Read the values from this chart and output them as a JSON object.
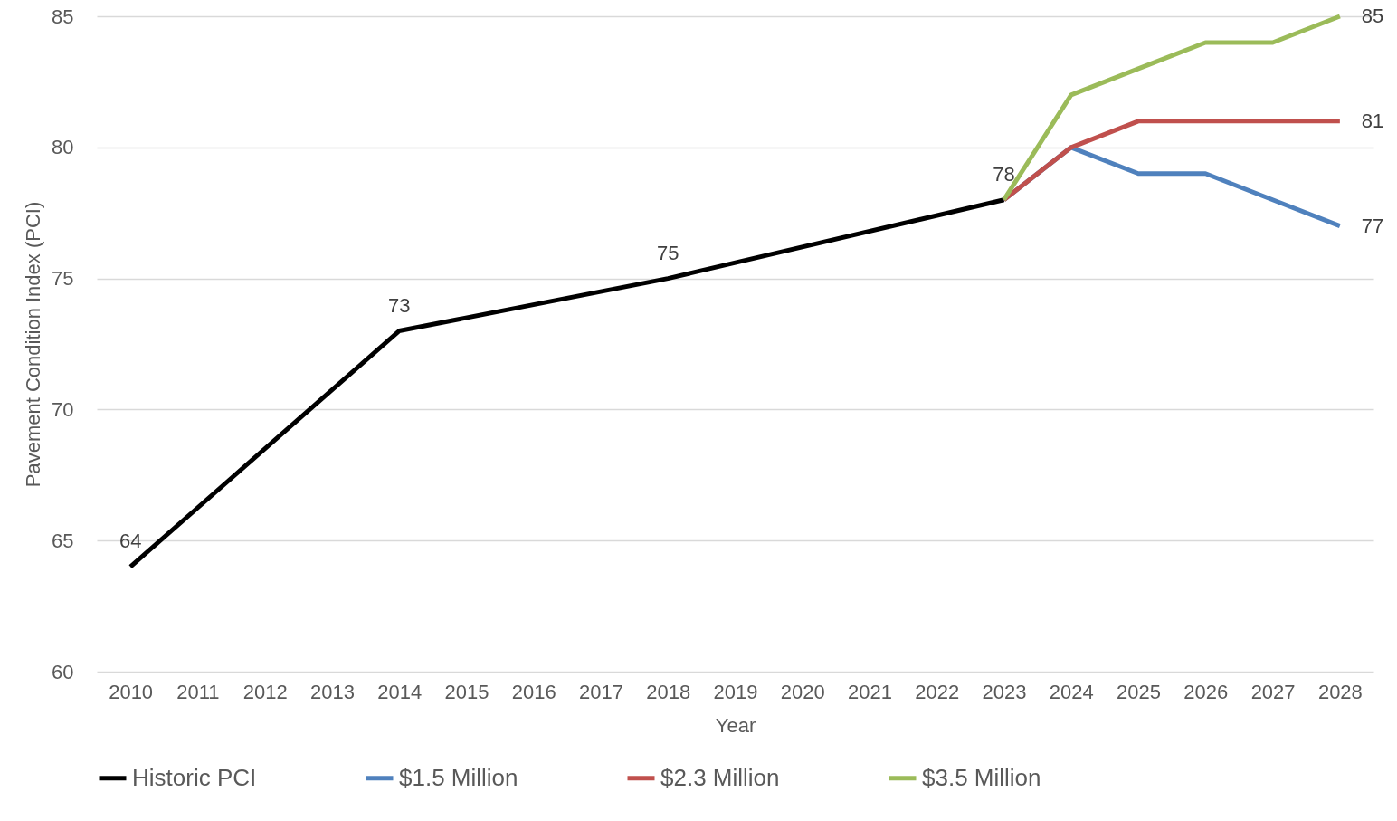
{
  "chart_data": {
    "type": "line",
    "xlabel": "Year",
    "ylabel": "Pavement Condition Index (PCI)",
    "xlim": [
      2009.5,
      2028.5
    ],
    "xticks": [
      2010,
      2011,
      2012,
      2013,
      2014,
      2015,
      2016,
      2017,
      2018,
      2019,
      2020,
      2021,
      2022,
      2023,
      2024,
      2025,
      2026,
      2027,
      2028
    ],
    "ylim": [
      60,
      85
    ],
    "yticks": [
      60,
      65,
      70,
      75,
      80,
      85
    ],
    "grid": "y",
    "legend": "bottom",
    "series": [
      {
        "name": "Historic PCI",
        "color": "#000000",
        "x": [
          2010,
          2014,
          2018,
          2023
        ],
        "values": [
          64,
          73,
          75,
          78
        ],
        "value_labels": [
          "64",
          "73",
          "75",
          "78"
        ]
      },
      {
        "name": "$1.5 Million",
        "color": "#4f81bd",
        "x": [
          2023,
          2024,
          2025,
          2026,
          2027,
          2028
        ],
        "values": [
          78,
          80,
          79,
          79,
          78,
          77
        ],
        "value_labels": [
          null,
          null,
          null,
          null,
          null,
          "77"
        ]
      },
      {
        "name": "$2.3 Million",
        "color": "#c0504d",
        "x": [
          2023,
          2024,
          2025,
          2026,
          2027,
          2028
        ],
        "values": [
          78,
          80,
          81,
          81,
          81,
          81
        ],
        "value_labels": [
          null,
          null,
          null,
          null,
          null,
          "81"
        ]
      },
      {
        "name": "$3.5 Million",
        "color": "#9bbb59",
        "x": [
          2023,
          2024,
          2025,
          2026,
          2027,
          2028
        ],
        "values": [
          78,
          82,
          83,
          84,
          84,
          85
        ],
        "value_labels": [
          null,
          null,
          null,
          null,
          null,
          "85"
        ]
      }
    ]
  }
}
